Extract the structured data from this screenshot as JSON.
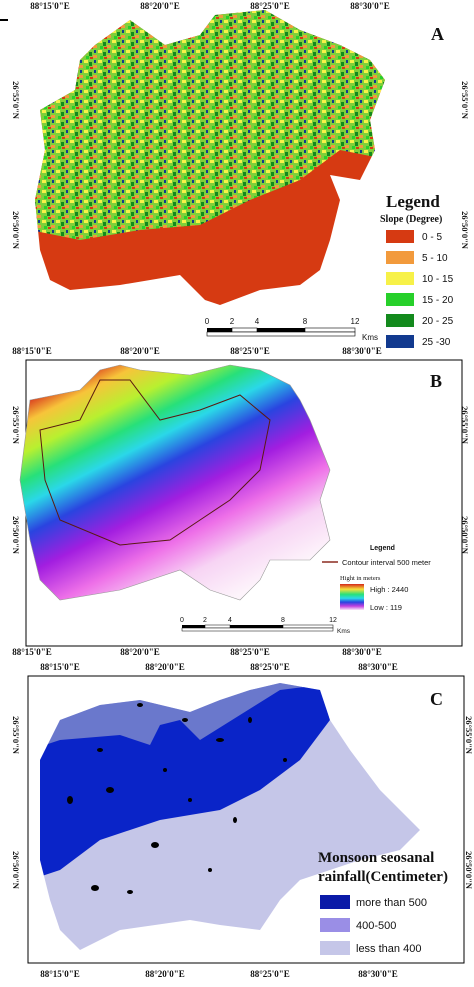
{
  "panels": [
    {
      "label": "A",
      "top_coords": [
        "88°15'0\"E",
        "88°20'0\"E",
        "88°25'0\"E",
        "88°30'0\"E"
      ],
      "lat_coords": [
        "26°55'0\"N",
        "26°50'0\"N"
      ],
      "legend": {
        "title": "Legend",
        "subtitle": "Slope  (Degree)",
        "items": [
          {
            "label": "0 - 5",
            "color": "#d63a12"
          },
          {
            "label": "5 - 10",
            "color": "#f29a3c"
          },
          {
            "label": "10 - 15",
            "color": "#f7f148"
          },
          {
            "label": "15 - 20",
            "color": "#27d02a"
          },
          {
            "label": "20 - 25",
            "color": "#138a1d"
          },
          {
            "label": "25 -30",
            "color": "#123a8f"
          }
        ]
      },
      "scale": [
        "0",
        "2",
        "4",
        "8",
        "12"
      ],
      "scale_unit": "Kms"
    },
    {
      "label": "B",
      "top_coords": [
        "88°15'0\"E",
        "88°20'0\"E",
        "88°25'0\"E",
        "88°30'0\"E"
      ],
      "lat_coords": [
        "26°55'0\"N",
        "26°50'0\"N"
      ],
      "bottom_coords": [
        "88°15'0\"E",
        "88°20'0\"E",
        "88°25'0\"E",
        "88°30'0\"E"
      ],
      "legend": {
        "title": "Legend",
        "contour": "Contour interval 500 meter",
        "height_title": "Hight in meters",
        "high": "High : 2440",
        "low": "Low : 119"
      },
      "scale": [
        "0",
        "2",
        "4",
        "8",
        "12"
      ],
      "scale_unit": "Kms"
    },
    {
      "label": "C",
      "top_coords": [
        "88°15'0\"E",
        "88°20'0\"E",
        "88°25'0\"E",
        "88°30'0\"E"
      ],
      "lat_coords": [
        "26°55'0\"N",
        "26°50'0\"N"
      ],
      "bottom_coords": [
        "88°15'0\"E",
        "88°20'0\"E",
        "88°25'0\"E",
        "88°30'0\"E"
      ],
      "legend": {
        "title_lines": [
          "Monsoon seosanal",
          "rainfall(Centimeter)"
        ],
        "items": [
          {
            "label": "more than 500",
            "color": "#0a1aa8"
          },
          {
            "label": "400-500",
            "color": "#9a8ee6"
          },
          {
            "label": "less than 400",
            "color": "#c5c6e8"
          }
        ]
      }
    }
  ]
}
